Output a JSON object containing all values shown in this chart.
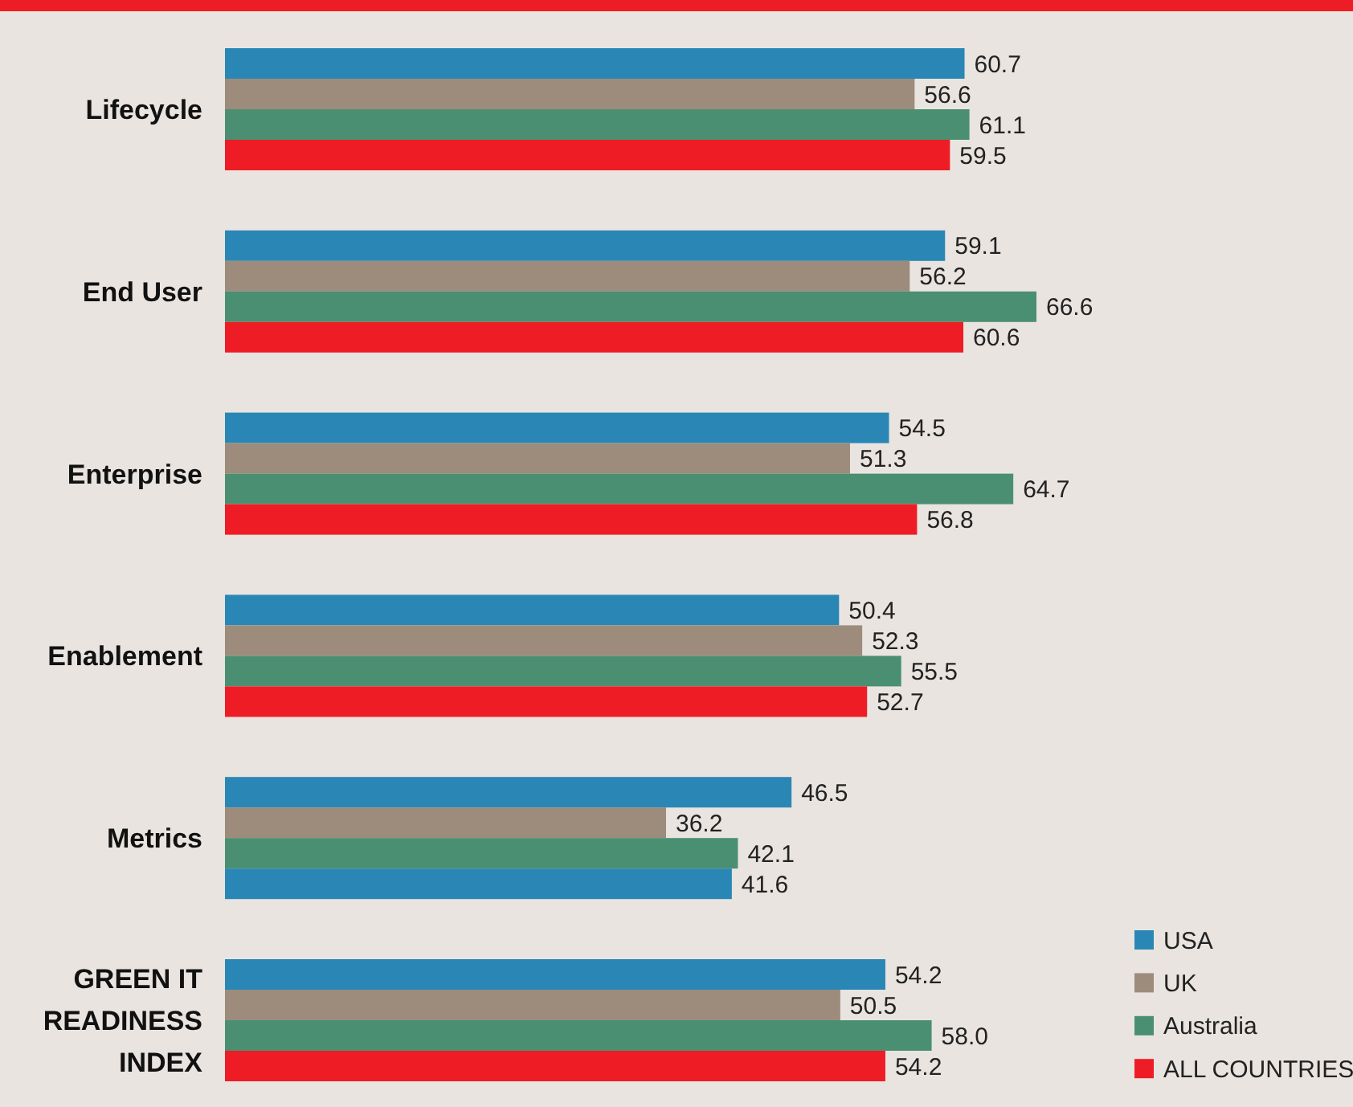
{
  "chart_data": {
    "type": "bar",
    "orientation": "horizontal",
    "categories": [
      "Lifecycle",
      "End User",
      "Enterprise",
      "Enablement",
      "Metrics",
      "GREEN IT READINESS INDEX"
    ],
    "series": [
      {
        "name": "USA",
        "color": "#2a87b5",
        "values": [
          60.7,
          59.1,
          54.5,
          50.4,
          46.5,
          54.2
        ]
      },
      {
        "name": "UK",
        "color": "#9d8c7c",
        "values": [
          56.6,
          56.2,
          51.3,
          52.3,
          36.2,
          50.5
        ]
      },
      {
        "name": "Australia",
        "color": "#4a8f72",
        "values": [
          61.1,
          66.6,
          64.7,
          55.5,
          42.1,
          58.0
        ],
        "value_labels": [
          "61.1",
          "66.6",
          "64.7",
          "55.5",
          "42.1",
          "58.0"
        ]
      },
      {
        "name": "ALL COUNTRIES",
        "color": "#ee1c25",
        "colors": [
          "#ee1c25",
          "#ee1c25",
          "#ee1c25",
          "#ee1c25",
          "#2a87b5",
          "#ee1c25"
        ],
        "values": [
          59.5,
          60.6,
          56.8,
          52.7,
          41.6,
          54.2
        ]
      }
    ],
    "data_labels": true,
    "legend": "bottom right"
  }
}
